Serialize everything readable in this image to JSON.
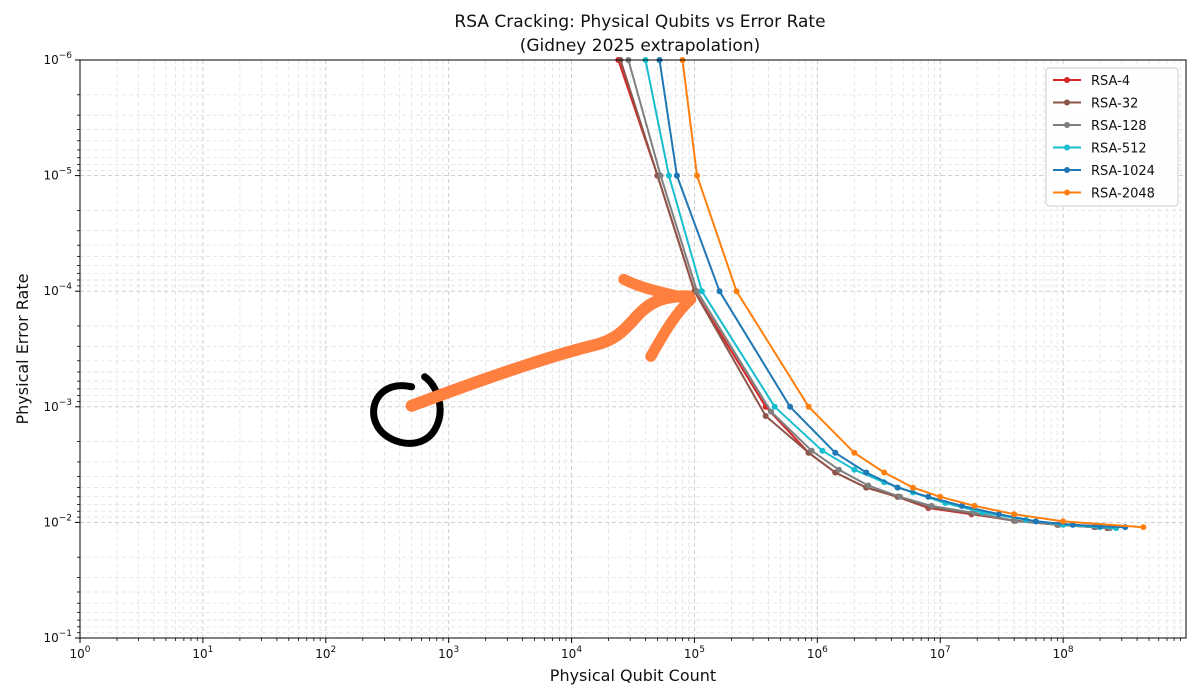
{
  "chart_data": {
    "type": "line",
    "title_line1": "RSA Cracking: Physical Qubits vs Error Rate",
    "title_line2": "(Gidney 2025 extrapolation)",
    "xlabel": "Physical Qubit Count",
    "ylabel": "Physical Error Rate",
    "xscale": "log",
    "yscale": "log",
    "y_inverted": true,
    "xlim": [
      1,
      1000000000
    ],
    "ylim": [
      1e-06,
      0.1
    ],
    "x_ticks": [
      {
        "value": 1,
        "base": "10",
        "exp": "0"
      },
      {
        "value": 10,
        "base": "10",
        "exp": "1"
      },
      {
        "value": 100,
        "base": "10",
        "exp": "2"
      },
      {
        "value": 1000,
        "base": "10",
        "exp": "3"
      },
      {
        "value": 10000,
        "base": "10",
        "exp": "4"
      },
      {
        "value": 100000,
        "base": "10",
        "exp": "5"
      },
      {
        "value": 1000000,
        "base": "10",
        "exp": "6"
      },
      {
        "value": 10000000,
        "base": "10",
        "exp": "7"
      },
      {
        "value": 100000000,
        "base": "10",
        "exp": "8"
      }
    ],
    "y_ticks": [
      {
        "value": 1e-06,
        "base": "10",
        "exp": "−6"
      },
      {
        "value": 1e-05,
        "base": "10",
        "exp": "−5"
      },
      {
        "value": 0.0001,
        "base": "10",
        "exp": "−4"
      },
      {
        "value": 0.001,
        "base": "10",
        "exp": "−3"
      },
      {
        "value": 0.01,
        "base": "10",
        "exp": "−2"
      },
      {
        "value": 0.1,
        "base": "10",
        "exp": "−1"
      }
    ],
    "grid": true,
    "legend_position": "top-right",
    "series": [
      {
        "name": "RSA-4",
        "color": "#d62728",
        "x": [
          24000,
          50000,
          100000,
          380000,
          850000,
          1400000,
          2500000,
          4500000,
          8000000,
          18000000,
          40000000,
          90000000,
          180000000,
          230000000
        ],
        "y": [
          1e-06,
          1e-05,
          0.0001,
          0.001,
          0.0025,
          0.0037,
          0.005,
          0.006,
          0.0075,
          0.0085,
          0.0096,
          0.0105,
          0.011,
          0.0112
        ]
      },
      {
        "name": "RSA-32",
        "color": "#8c564b",
        "x": [
          25000,
          50000,
          100000,
          380000,
          850000,
          1400000,
          2500000,
          4500000,
          8000000,
          18000000,
          40000000,
          90000000,
          180000000,
          230000000
        ],
        "y": [
          1e-06,
          1e-05,
          0.0001,
          0.0012,
          0.0025,
          0.0037,
          0.005,
          0.006,
          0.0074,
          0.0084,
          0.0097,
          0.0105,
          0.011,
          0.0112
        ]
      },
      {
        "name": "RSA-128",
        "color": "#7f7f7f",
        "x": [
          29000,
          53000,
          105000,
          420000,
          900000,
          1500000,
          2600000,
          4700000,
          8500000,
          19000000,
          41000000,
          92000000,
          185000000,
          240000000
        ],
        "y": [
          1e-06,
          1e-05,
          0.0001,
          0.0011,
          0.0024,
          0.0035,
          0.0048,
          0.006,
          0.0072,
          0.0083,
          0.0097,
          0.0105,
          0.011,
          0.0112
        ]
      },
      {
        "name": "RSA-512",
        "color": "#17becf",
        "x": [
          40000,
          62000,
          115000,
          450000,
          1100000,
          2000000,
          3500000,
          6000000,
          11000000,
          22000000,
          50000000,
          100000000,
          200000000,
          270000000
        ],
        "y": [
          1e-06,
          1e-05,
          0.0001,
          0.001,
          0.0024,
          0.0035,
          0.0045,
          0.0055,
          0.0068,
          0.0082,
          0.0095,
          0.0105,
          0.011,
          0.0112
        ]
      },
      {
        "name": "RSA-1024",
        "color": "#1f77b4",
        "x": [
          52000,
          72000,
          160000,
          600000,
          1400000,
          2500000,
          4500000,
          8000000,
          15000000,
          30000000,
          60000000,
          120000000,
          200000000,
          320000000
        ],
        "y": [
          1e-06,
          1e-05,
          0.0001,
          0.001,
          0.0025,
          0.0037,
          0.005,
          0.006,
          0.0072,
          0.0085,
          0.0098,
          0.0105,
          0.0108,
          0.011
        ]
      },
      {
        "name": "RSA-2048",
        "color": "#ff7f0e",
        "x": [
          80000,
          105000,
          220000,
          850000,
          2000000,
          3500000,
          6000000,
          10000000,
          19000000,
          40000000,
          100000000,
          450000000
        ],
        "y": [
          1e-06,
          1e-05,
          0.0001,
          0.001,
          0.0025,
          0.0037,
          0.005,
          0.006,
          0.0072,
          0.0085,
          0.0098,
          0.011
        ]
      }
    ],
    "overlay": {
      "marker_circle_color": "#000000",
      "arrow_color": "#ff7f3f",
      "circle_at": {
        "x": 500,
        "y": 0.001
      },
      "arrow_from": {
        "x": 500,
        "y": 0.001
      },
      "arrow_to": {
        "x": 90000,
        "y": 0.00013
      }
    }
  }
}
